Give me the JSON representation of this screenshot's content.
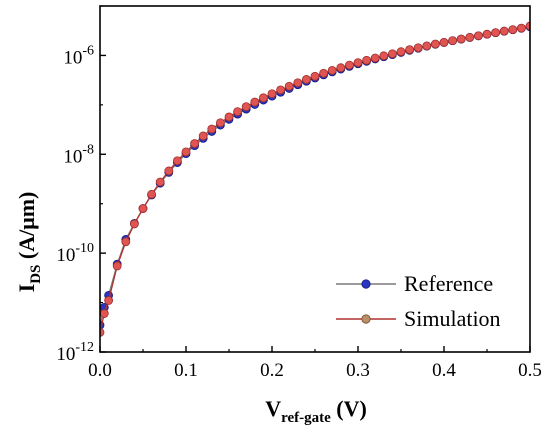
{
  "chart_data": {
    "type": "line",
    "xlabel": {
      "main": "V",
      "sub": "ref-gate",
      "unit": " (V)"
    },
    "ylabel": {
      "main": "I",
      "sub": "DS",
      "unit": " (A/μm)"
    },
    "xlim": [
      0,
      0.5
    ],
    "ylim": [
      1e-12,
      1e-05
    ],
    "yscale": "log",
    "grid": false,
    "legend_position": "bottom-right",
    "x_ticks": [
      "0.0",
      "0.1",
      "0.2",
      "0.3",
      "0.4",
      "0.5"
    ],
    "y_ticks": [
      {
        "base": "10",
        "exp": "-12"
      },
      {
        "base": "10",
        "exp": "-10"
      },
      {
        "base": "10",
        "exp": "-8"
      },
      {
        "base": "10",
        "exp": "-6"
      }
    ],
    "x": [
      0.0,
      0.005,
      0.01,
      0.02,
      0.03,
      0.04,
      0.05,
      0.06,
      0.07,
      0.08,
      0.09,
      0.1,
      0.11,
      0.12,
      0.13,
      0.14,
      0.15,
      0.16,
      0.17,
      0.18,
      0.19,
      0.2,
      0.21,
      0.22,
      0.23,
      0.24,
      0.25,
      0.26,
      0.27,
      0.28,
      0.29,
      0.3,
      0.31,
      0.32,
      0.33,
      0.34,
      0.35,
      0.36,
      0.37,
      0.38,
      0.39,
      0.4,
      0.41,
      0.42,
      0.43,
      0.44,
      0.45,
      0.46,
      0.47,
      0.48,
      0.49,
      0.5
    ],
    "series": [
      {
        "name": "Reference",
        "line_color": "#7a7a7a",
        "marker_color": "#2b35c2",
        "values": [
          3.5e-12,
          8e-12,
          1.4e-11,
          6e-11,
          1.9e-10,
          4e-10,
          8e-10,
          1.5e-09,
          2.6e-09,
          4.3e-09,
          6.8e-09,
          1.03e-08,
          1.5e-08,
          2.1e-08,
          2.9e-08,
          3.9e-08,
          5.1e-08,
          6.5e-08,
          8.2e-08,
          1.02e-07,
          1.25e-07,
          1.5e-07,
          1.8e-07,
          2.15e-07,
          2.55e-07,
          3e-07,
          3.5e-07,
          4.05e-07,
          4.65e-07,
          5.3e-07,
          6e-07,
          6.8e-07,
          7.6e-07,
          8.5e-07,
          9.4e-07,
          1.04e-06,
          1.15e-06,
          1.27e-06,
          1.4e-06,
          1.54e-06,
          1.68e-06,
          1.83e-06,
          1.98e-06,
          2.14e-06,
          2.31e-06,
          2.49e-06,
          2.68e-06,
          2.88e-06,
          3.09e-06,
          3.31e-06,
          3.54e-06,
          3.8e-06
        ]
      },
      {
        "name": "Simulation",
        "line_color": "#b0312f",
        "marker_color": "#e05552",
        "values": [
          2.5e-12,
          6e-12,
          1.1e-11,
          5.5e-11,
          1.7e-10,
          3.9e-10,
          8e-10,
          1.55e-09,
          2.75e-09,
          4.6e-09,
          7.4e-09,
          1.12e-08,
          1.65e-08,
          2.35e-08,
          3.25e-08,
          4.35e-08,
          5.7e-08,
          7.3e-08,
          9.2e-08,
          1.14e-07,
          1.39e-07,
          1.68e-07,
          2.01e-07,
          2.38e-07,
          2.8e-07,
          3.27e-07,
          3.79e-07,
          4.36e-07,
          4.98e-07,
          5.65e-07,
          6.37e-07,
          7.15e-07,
          7.98e-07,
          8.87e-07,
          9.82e-07,
          1.08e-06,
          1.19e-06,
          1.31e-06,
          1.43e-06,
          1.56e-06,
          1.7e-06,
          1.84e-06,
          1.99e-06,
          2.15e-06,
          2.32e-06,
          2.5e-06,
          2.69e-06,
          2.89e-06,
          3.1e-06,
          3.33e-06,
          3.57e-06,
          3.95e-06
        ]
      }
    ]
  }
}
